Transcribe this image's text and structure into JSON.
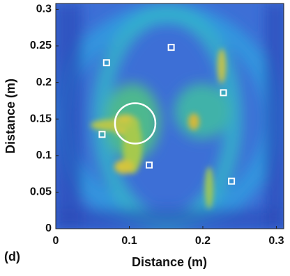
{
  "chart_data": {
    "type": "scatter",
    "panel_label": "(d)",
    "x_label": "Distance (m)",
    "y_label": "Distance (m)",
    "xlim": [
      0,
      0.31
    ],
    "ylim": [
      0,
      0.308
    ],
    "xticks": [
      0,
      0.1,
      0.2,
      0.3
    ],
    "yticks": [
      0,
      0.05,
      0.1,
      0.15,
      0.2,
      0.25,
      0.3
    ],
    "x": [
      0.069,
      0.157,
      0.228,
      0.063,
      0.127,
      0.239
    ],
    "y": [
      0.227,
      0.248,
      0.186,
      0.129,
      0.087,
      0.065
    ],
    "marker_color": "#ffffff",
    "circle": {
      "x": 0.108,
      "y": 0.144,
      "r": 0.0275,
      "color": "#ffffff"
    }
  }
}
